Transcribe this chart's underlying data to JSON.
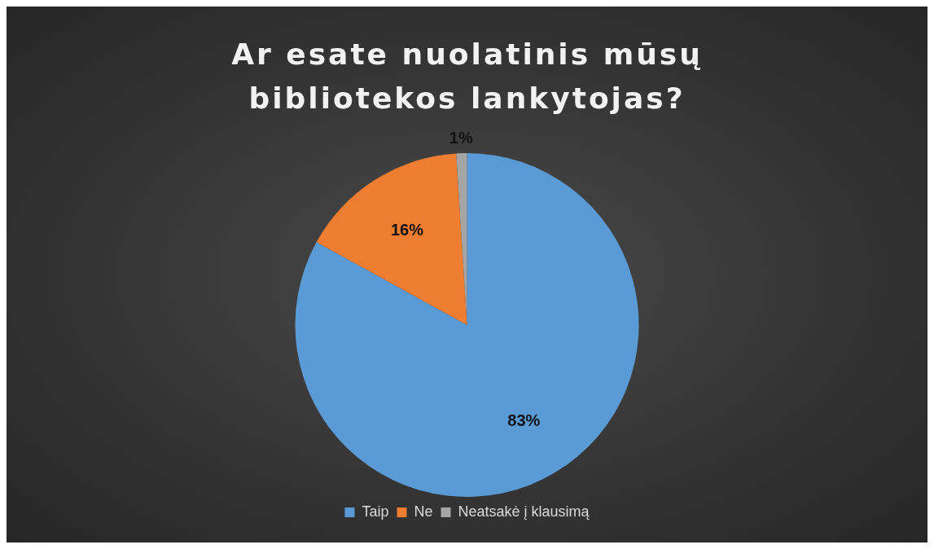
{
  "chart_data": {
    "type": "pie",
    "title": "Ar esate nuolatinis mūsų bibliotekos lankytojas?",
    "categories": [
      "Taip",
      "Ne",
      "Neatsakė į klausimą"
    ],
    "values": [
      83,
      16,
      1
    ],
    "colors": [
      "#5b9bd5",
      "#ed7d31",
      "#a5a5a5"
    ],
    "value_labels": [
      "83%",
      "16%",
      "1%"
    ],
    "legend": "bottom"
  }
}
